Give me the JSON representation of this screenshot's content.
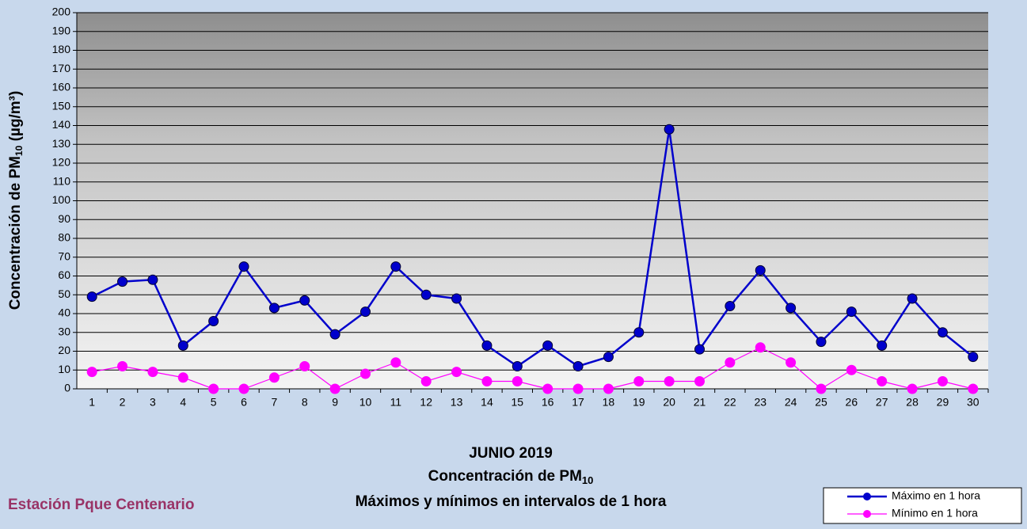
{
  "chart_data": {
    "type": "line",
    "title": "JUNIO 2019",
    "subtitle": [
      "Concentración de PM",
      "10"
    ],
    "subtitle2": "Máximos y mínimos en intervalos de 1 hora",
    "station": "Estación Pque Centenario",
    "y_label": [
      "Concentración de PM",
      "10",
      " (µg/m³)"
    ],
    "categories": [
      1,
      2,
      3,
      4,
      5,
      6,
      7,
      8,
      9,
      10,
      11,
      12,
      13,
      14,
      15,
      16,
      17,
      18,
      19,
      20,
      21,
      22,
      23,
      24,
      25,
      26,
      27,
      28,
      29,
      30
    ],
    "series": [
      {
        "name": "Máximo en 1 hora",
        "color": "#0000cc",
        "values": [
          49,
          57,
          58,
          23,
          36,
          65,
          43,
          47,
          29,
          41,
          65,
          50,
          48,
          23,
          12,
          23,
          12,
          17,
          30,
          138,
          21,
          44,
          63,
          43,
          25,
          41,
          23,
          48,
          30,
          17
        ]
      },
      {
        "name": "Mínimo en 1 hora",
        "color": "#ff00ff",
        "values": [
          9,
          12,
          9,
          6,
          0,
          0,
          6,
          12,
          0,
          8,
          14,
          4,
          9,
          4,
          4,
          0,
          0,
          0,
          4,
          4,
          4,
          14,
          22,
          14,
          0,
          10,
          4,
          0,
          4,
          0
        ]
      }
    ],
    "ylim": [
      0,
      200
    ],
    "yticks": [
      0,
      10,
      20,
      30,
      40,
      50,
      60,
      70,
      80,
      90,
      100,
      110,
      120,
      130,
      140,
      150,
      160,
      170,
      180,
      190,
      200
    ],
    "grid": true,
    "legend": "bottom-right"
  }
}
